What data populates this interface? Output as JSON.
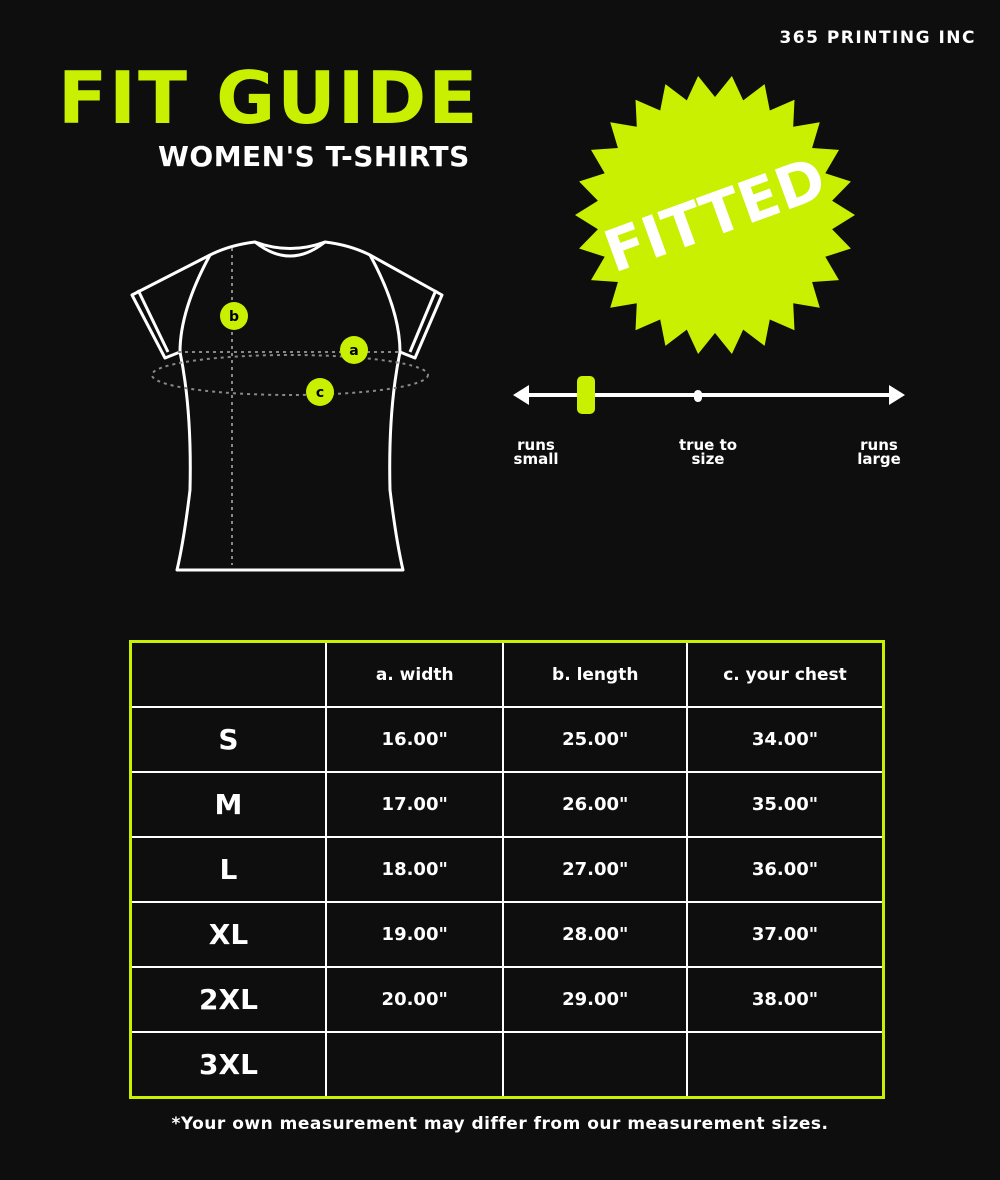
{
  "brand": "365 PRINTING INC",
  "title": "FIT GUIDE",
  "subtitle": "WOMEN'S T-SHIRTS",
  "badge": "FITTED",
  "accent_color": "#c8f000",
  "diagram_markers": {
    "a": "a",
    "b": "b",
    "c": "c"
  },
  "fit_scale": {
    "labels": [
      "runs small",
      "true to size",
      "runs large"
    ],
    "indicator_position": "runs small"
  },
  "table": {
    "headers": [
      "",
      "a. width",
      "b. length",
      "c. your chest"
    ],
    "rows": [
      [
        "S",
        "16.00\"",
        "25.00\"",
        "34.00\""
      ],
      [
        "M",
        "17.00\"",
        "26.00\"",
        "35.00\""
      ],
      [
        "L",
        "18.00\"",
        "27.00\"",
        "36.00\""
      ],
      [
        "XL",
        "19.00\"",
        "28.00\"",
        "37.00\""
      ],
      [
        "2XL",
        "20.00\"",
        "29.00\"",
        "38.00\""
      ],
      [
        "3XL",
        "",
        "",
        ""
      ]
    ]
  },
  "footnote": "*Your own measurement may differ from our measurement sizes."
}
